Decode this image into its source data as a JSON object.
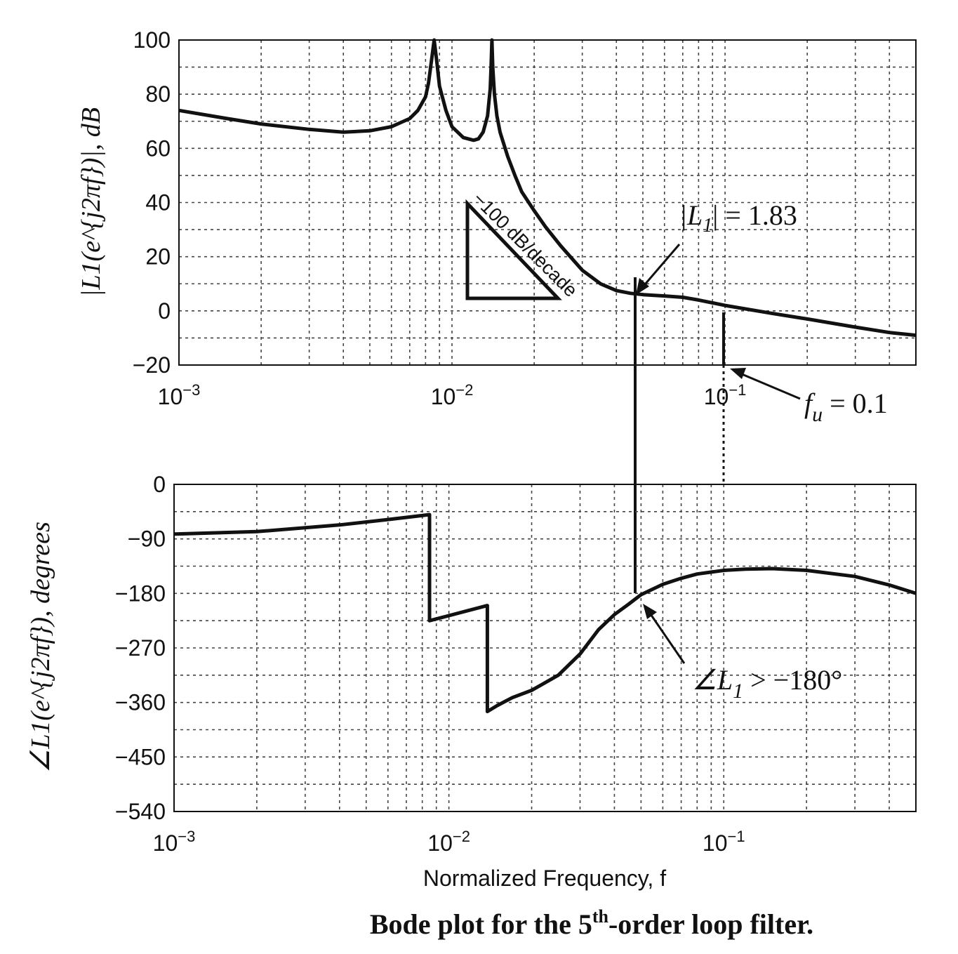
{
  "chart_data": [
    {
      "type": "line",
      "ylabel": "|L1(e^{j2πf})|, dB",
      "xscale": "log",
      "xlim": [
        0.001,
        0.5
      ],
      "ylim": [
        -20,
        100
      ],
      "x_ticks": [
        "10^-3",
        "10^-2",
        "10^-1"
      ],
      "y_ticks": [
        "100",
        "80",
        "60",
        "40",
        "20",
        "0",
        "−20"
      ],
      "grid": true,
      "series": [
        {
          "x": [
            0.001,
            0.0015,
            0.002,
            0.003,
            0.004,
            0.005,
            0.006,
            0.007,
            0.0075,
            0.008,
            0.0082,
            0.0084,
            0.0086,
            0.0088,
            0.009,
            0.0095,
            0.01,
            0.011,
            0.012,
            0.0125,
            0.013,
            0.0135,
            0.0138,
            0.0139,
            0.014,
            0.0141,
            0.0143,
            0.0146,
            0.015,
            0.016,
            0.017,
            0.018,
            0.02,
            0.022,
            0.025,
            0.03,
            0.035,
            0.04,
            0.045,
            0.05,
            0.06,
            0.07,
            0.08,
            0.1,
            0.15,
            0.2,
            0.3,
            0.4,
            0.5
          ],
          "y": [
            74,
            71,
            69,
            67,
            66,
            66.5,
            68,
            71,
            74,
            79,
            84,
            92,
            100,
            92,
            83,
            74,
            68,
            64,
            63,
            63.5,
            66,
            72,
            82,
            90,
            100,
            90,
            80,
            72,
            66,
            57,
            50,
            44,
            37,
            31,
            24,
            15,
            10,
            7.5,
            6.5,
            6,
            5.5,
            5,
            4,
            2,
            -1,
            -3,
            -6,
            -8,
            -9
          ]
        }
      ],
      "annotations": [
        {
          "text": "−100 dB/decade"
        },
        {
          "text": "|L1| = 1.83",
          "x": 0.05,
          "y": 5.3
        },
        {
          "text": "f_u = 0.1",
          "x": 0.1,
          "y": -20
        }
      ]
    },
    {
      "type": "line",
      "ylabel": "∠L1(e^{j2πf}), degrees",
      "xlabel": "Normalized Frequency, f",
      "xscale": "log",
      "xlim": [
        0.001,
        0.5
      ],
      "ylim": [
        -540,
        0
      ],
      "x_ticks": [
        "10^-3",
        "10^-2",
        "10^-1"
      ],
      "y_ticks": [
        "0",
        "−90",
        "−180",
        "−270",
        "−360",
        "−450",
        "−540"
      ],
      "grid": true,
      "series": [
        {
          "x": [
            0.001,
            0.002,
            0.004,
            0.006,
            0.0085,
            0.0085,
            0.0138,
            0.0138,
            0.015,
            0.017,
            0.02,
            0.025,
            0.03,
            0.035,
            0.04,
            0.045,
            0.05,
            0.06,
            0.07,
            0.08,
            0.1,
            0.12,
            0.15,
            0.2,
            0.3,
            0.4,
            0.5
          ],
          "y": [
            -82,
            -78,
            -67,
            -58,
            -50,
            -225,
            -200,
            -375,
            -365,
            -352,
            -340,
            -315,
            -280,
            -240,
            -215,
            -198,
            -182,
            -165,
            -155,
            -148,
            -142,
            -140,
            -139,
            -142,
            -152,
            -166,
            -180
          ]
        }
      ],
      "annotations": [
        {
          "text": "∠L1 > −180°",
          "x": 0.05,
          "y": -182
        }
      ]
    }
  ],
  "labels": {
    "slope": "−100 dB/decade",
    "mag_note_pre": "|L",
    "mag_note_sub": "1",
    "mag_note_post": "| = 1.83",
    "fu_note_f": "f",
    "fu_note_sub": "u",
    "fu_note_post": " = 0.1",
    "phase_note_pre": "∠L",
    "phase_note_sub": "1",
    "phase_note_post": " > −180°"
  },
  "caption": {
    "pre": "Bode plot for the 5",
    "sup": "th",
    "post": "-order loop filter."
  }
}
